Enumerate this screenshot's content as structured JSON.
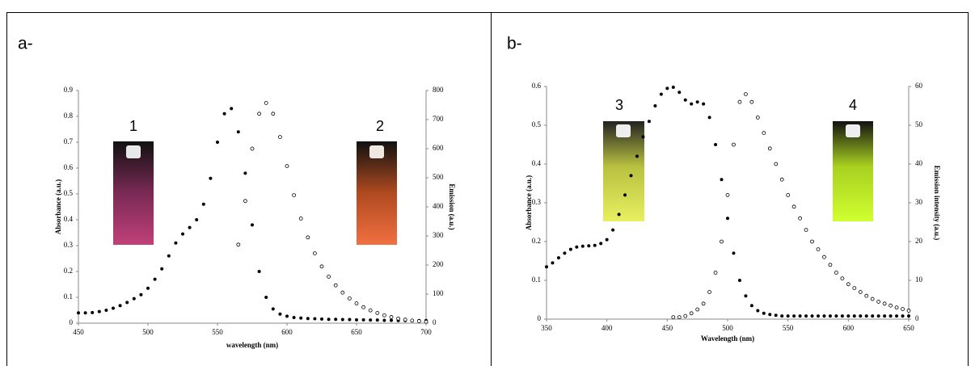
{
  "chart_data": [
    {
      "type": "scatter",
      "panel_label": "a-",
      "annotations": [
        "1",
        "2"
      ],
      "xlabel": "wavelength (nm)",
      "ylabel": "Absorbance (a.u.)",
      "y2label": "Emission (a.u.)",
      "x": [
        450,
        455,
        460,
        465,
        470,
        475,
        480,
        485,
        490,
        495,
        500,
        505,
        510,
        515,
        520,
        525,
        530,
        535,
        540,
        545,
        550,
        555,
        560,
        565,
        570,
        575,
        580,
        585,
        590,
        595,
        600,
        605,
        610,
        615,
        620,
        625,
        630,
        635,
        640,
        645,
        650,
        655,
        660,
        665,
        670,
        675,
        680,
        685,
        690,
        695,
        700
      ],
      "series": [
        {
          "color": "#000000",
          "marker": "filled",
          "values": [
            0.04,
            0.04,
            0.041,
            0.045,
            0.05,
            0.058,
            0.068,
            0.08,
            0.095,
            0.11,
            0.135,
            0.17,
            0.21,
            0.26,
            0.31,
            0.345,
            0.37,
            0.4,
            0.46,
            0.56,
            0.7,
            0.81,
            0.83,
            0.74,
            0.58,
            0.38,
            0.2,
            0.1,
            0.055,
            0.035,
            0.027,
            0.022,
            0.02,
            0.018,
            0.017,
            0.016,
            0.015,
            0.015,
            0.014,
            0.014,
            0.013,
            0.013,
            0.012,
            0.012,
            0.011,
            0.011,
            0.01,
            0.01,
            0.01,
            0.01,
            0.01
          ]
        },
        {
          "color": "#000000",
          "marker": "open",
          "axis": "y2",
          "values": [
            null,
            null,
            null,
            null,
            null,
            null,
            null,
            null,
            null,
            null,
            null,
            null,
            null,
            null,
            null,
            null,
            null,
            null,
            null,
            null,
            null,
            null,
            null,
            270,
            420,
            600,
            720,
            757,
            720,
            640,
            540,
            440,
            360,
            295,
            240,
            195,
            160,
            130,
            105,
            85,
            68,
            55,
            44,
            35,
            27,
            21,
            16,
            12,
            9,
            7,
            5
          ]
        }
      ],
      "xlim": [
        450,
        700
      ],
      "xticks": [
        450,
        500,
        550,
        600,
        650,
        700
      ],
      "ylim": [
        0,
        0.9
      ],
      "yticks": [
        0,
        0.1,
        0.2,
        0.3,
        0.4,
        0.5,
        0.6,
        0.7,
        0.8,
        0.9
      ],
      "y2lim": [
        0,
        800
      ],
      "y2ticks": [
        0,
        100,
        200,
        300,
        400,
        500,
        600,
        700,
        800
      ]
    },
    {
      "type": "scatter",
      "panel_label": "b-",
      "annotations": [
        "3",
        "4"
      ],
      "xlabel": "Wavelength (nm)",
      "ylabel": "Absorbance (a.u.)",
      "y2label": "Emission intensity (a.u.)",
      "x": [
        350,
        355,
        360,
        365,
        370,
        375,
        380,
        385,
        390,
        395,
        400,
        405,
        410,
        415,
        420,
        425,
        430,
        435,
        440,
        445,
        450,
        455,
        460,
        465,
        470,
        475,
        480,
        485,
        490,
        495,
        500,
        505,
        510,
        515,
        520,
        525,
        530,
        535,
        540,
        545,
        550,
        555,
        560,
        565,
        570,
        575,
        580,
        585,
        590,
        595,
        600,
        605,
        610,
        615,
        620,
        625,
        630,
        635,
        640,
        645,
        650
      ],
      "series": [
        {
          "color": "#000000",
          "marker": "filled",
          "values": [
            0.135,
            0.145,
            0.158,
            0.17,
            0.18,
            0.186,
            0.188,
            0.189,
            0.19,
            0.195,
            0.205,
            0.23,
            0.27,
            0.32,
            0.37,
            0.42,
            0.47,
            0.51,
            0.55,
            0.58,
            0.595,
            0.598,
            0.585,
            0.565,
            0.555,
            0.56,
            0.555,
            0.52,
            0.45,
            0.36,
            0.26,
            0.17,
            0.1,
            0.06,
            0.035,
            0.022,
            0.015,
            0.012,
            0.01,
            0.008,
            0.008,
            0.008,
            0.008,
            0.008,
            0.008,
            0.008,
            0.008,
            0.008,
            0.008,
            0.008,
            0.008,
            0.008,
            0.008,
            0.008,
            0.008,
            0.008,
            0.008,
            0.008,
            0.008,
            0.008,
            0.008
          ]
        },
        {
          "color": "#000000",
          "marker": "open",
          "axis": "y2",
          "values": [
            null,
            null,
            null,
            null,
            null,
            null,
            null,
            null,
            null,
            null,
            null,
            null,
            null,
            null,
            null,
            null,
            null,
            null,
            null,
            null,
            null,
            0.5,
            0.5,
            0.8,
            1.5,
            2.5,
            4,
            7,
            12,
            20,
            32,
            45,
            56,
            58,
            56,
            52,
            48,
            44,
            40,
            36,
            32,
            29,
            26,
            23,
            20,
            18,
            16,
            14,
            12,
            10.5,
            9,
            8,
            7,
            6,
            5.2,
            4.5,
            4,
            3.5,
            3,
            2.6,
            2.2
          ]
        }
      ],
      "xlim": [
        350,
        650
      ],
      "xticks": [
        350,
        400,
        450,
        500,
        550,
        600,
        650
      ],
      "ylim": [
        0,
        0.6
      ],
      "yticks": [
        0,
        0.1,
        0.2,
        0.3,
        0.4,
        0.5,
        0.6
      ],
      "y2lim": [
        0,
        60
      ],
      "y2ticks": [
        0,
        10,
        20,
        30,
        40,
        50,
        60
      ]
    }
  ]
}
